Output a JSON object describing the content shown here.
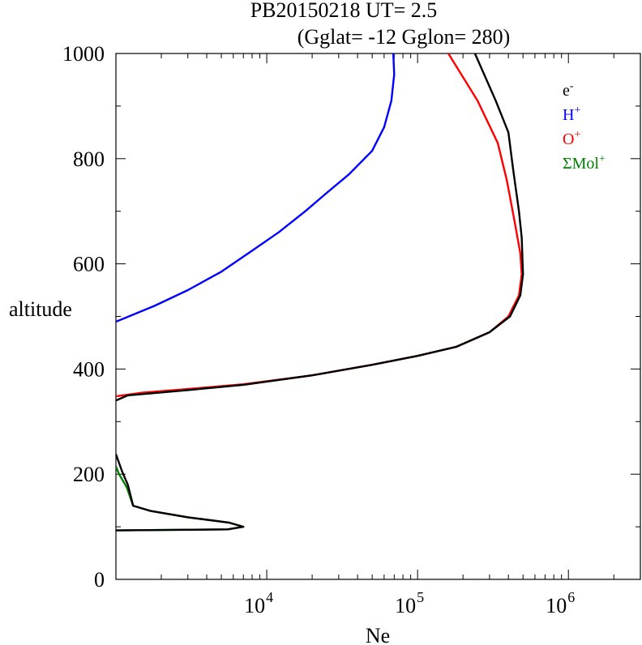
{
  "chart_data": {
    "type": "line",
    "title_line1": "PB20150218   UT=  2.5",
    "title_line2": "(Gglat= -12   Gglon=  280)",
    "xlabel": "Ne",
    "ylabel": "altitude",
    "xscale": "log",
    "xlim": [
      1000,
      3000000
    ],
    "ylim": [
      0,
      1000
    ],
    "yticks": [
      0,
      200,
      400,
      600,
      800,
      1000
    ],
    "ytick_labels": [
      "0",
      "200",
      "400",
      "600",
      "800",
      "1000"
    ],
    "xticks": [
      {
        "value": 10000,
        "base": "10",
        "exp": "4"
      },
      {
        "value": 100000,
        "base": "10",
        "exp": "5"
      },
      {
        "value": 1000000,
        "base": "10",
        "exp": "6"
      }
    ],
    "legend_position": "top-right",
    "series": [
      {
        "name": "H+",
        "label": "H",
        "sup": "+",
        "color": "#0000ff",
        "points": [
          [
            1000,
            490
          ],
          [
            1800,
            520
          ],
          [
            3000,
            550
          ],
          [
            5000,
            585
          ],
          [
            8000,
            625
          ],
          [
            12000,
            660
          ],
          [
            18000,
            700
          ],
          [
            25000,
            735
          ],
          [
            35000,
            770
          ],
          [
            50000,
            815
          ],
          [
            60000,
            860
          ],
          [
            67000,
            910
          ],
          [
            70000,
            960
          ],
          [
            69000,
            1000
          ]
        ]
      },
      {
        "name": "O+",
        "label": "O",
        "sup": "+",
        "color": "#ff0000",
        "points": [
          [
            1000,
            348
          ],
          [
            1500,
            355
          ],
          [
            3000,
            362
          ],
          [
            7000,
            371
          ],
          [
            20000,
            388
          ],
          [
            50000,
            408
          ],
          [
            100000,
            425
          ],
          [
            180000,
            442
          ],
          [
            300000,
            470
          ],
          [
            400000,
            500
          ],
          [
            470000,
            540
          ],
          [
            490000,
            580
          ],
          [
            480000,
            620
          ],
          [
            440000,
            680
          ],
          [
            390000,
            760
          ],
          [
            340000,
            830
          ],
          [
            250000,
            910
          ],
          [
            160000,
            1000
          ]
        ]
      },
      {
        "name": "ΣMol+",
        "label": "ΣMol",
        "sup": "+",
        "color": "#008000",
        "points": [
          [
            1000,
            93
          ],
          [
            5500,
            95
          ],
          [
            7000,
            100
          ],
          [
            5600,
            108
          ],
          [
            3000,
            118
          ],
          [
            1700,
            130
          ],
          [
            1300,
            140
          ],
          [
            1180,
            175
          ],
          [
            1050,
            200
          ],
          [
            1000,
            215
          ]
        ]
      },
      {
        "name": "e-",
        "label": "e",
        "sup": "-",
        "color": "#000000",
        "points": [
          [
            1000,
            93
          ],
          [
            5500,
            95
          ],
          [
            7000,
            100
          ],
          [
            5600,
            108
          ],
          [
            3000,
            118
          ],
          [
            1700,
            130
          ],
          [
            1300,
            140
          ],
          [
            1200,
            180
          ],
          [
            1100,
            205
          ],
          [
            1000,
            238
          ],
          null,
          [
            1000,
            340
          ],
          [
            1200,
            350
          ],
          [
            3000,
            360
          ],
          [
            7000,
            370
          ],
          [
            20000,
            388
          ],
          [
            50000,
            408
          ],
          [
            100000,
            425
          ],
          [
            180000,
            442
          ],
          [
            300000,
            470
          ],
          [
            410000,
            500
          ],
          [
            480000,
            540
          ],
          [
            500000,
            580
          ],
          [
            490000,
            650
          ],
          [
            470000,
            700
          ],
          [
            430000,
            780
          ],
          [
            400000,
            850
          ],
          [
            330000,
            910
          ],
          [
            240000,
            1000
          ]
        ]
      }
    ]
  }
}
